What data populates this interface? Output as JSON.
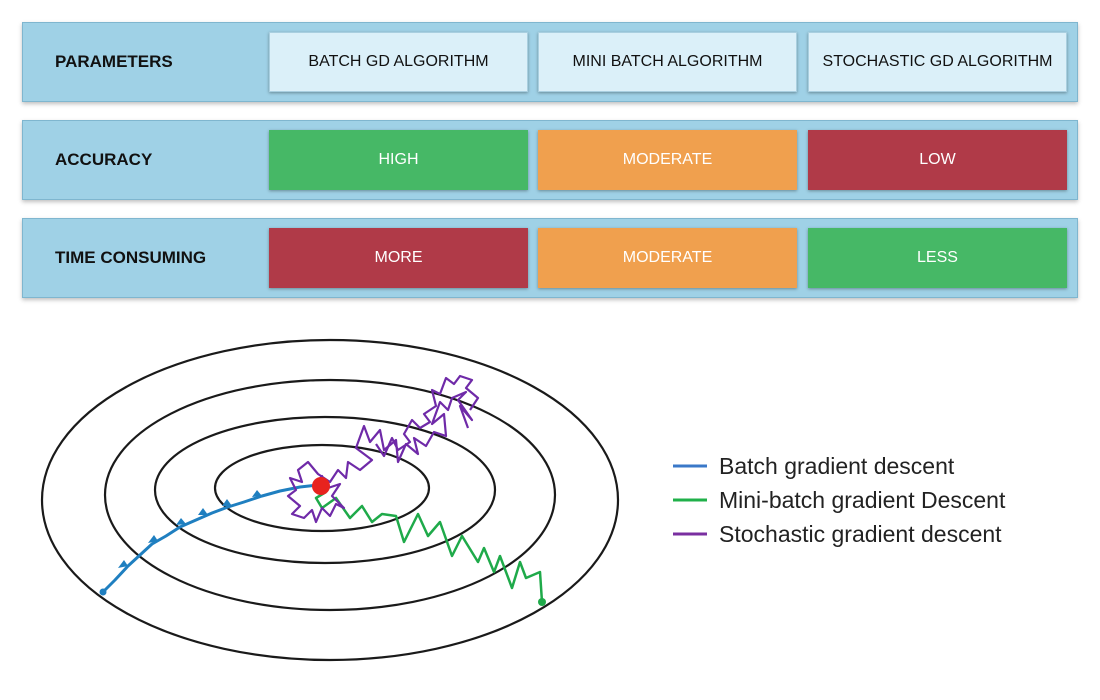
{
  "table": {
    "rows": [
      {
        "label": "PARAMETERS",
        "kind": "header",
        "cells": [
          {
            "text": "BATCH GD ALGORITHM",
            "color": "#dbf0f9"
          },
          {
            "text": "MINI BATCH ALGORITHM",
            "color": "#dbf0f9"
          },
          {
            "text": "STOCHASTIC GD ALGORITHM",
            "color": "#dbf0f9"
          }
        ]
      },
      {
        "label": "ACCURACY",
        "kind": "colored",
        "cells": [
          {
            "text": "HIGH",
            "color": "#46b866"
          },
          {
            "text": "MODERATE",
            "color": "#f0a04e"
          },
          {
            "text": "LOW",
            "color": "#b03a48"
          }
        ]
      },
      {
        "label": "TIME CONSUMING",
        "kind": "colored",
        "cells": [
          {
            "text": "MORE",
            "color": "#b03a48"
          },
          {
            "text": "MODERATE",
            "color": "#f0a04e"
          },
          {
            "text": "LESS",
            "color": "#46b866"
          }
        ]
      }
    ]
  },
  "legend": {
    "batch": {
      "label": "Batch gradient descent",
      "color": "#3a78c8"
    },
    "minibatch": {
      "label": "Mini-batch gradient Descent",
      "color": "#20b04a"
    },
    "stochastic": {
      "label": "Stochastic gradient descent",
      "color": "#7a2fa0"
    }
  },
  "diagram": {
    "contour_color": "#1a1a1a",
    "minimum_color": "#e8231e",
    "batch_path_color": "#1f7fc0",
    "minibatch_path_color": "#1faa4a",
    "stochastic_path_color": "#6f2aa8"
  }
}
